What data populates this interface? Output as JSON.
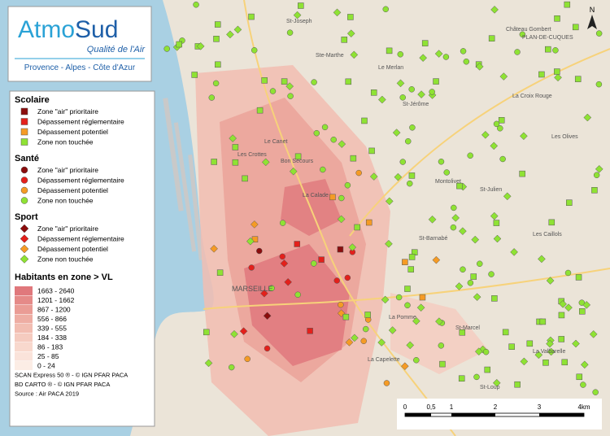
{
  "logo": {
    "brand_a": "Atmo",
    "brand_b": "Sud",
    "tagline": "Qualité de l'Air",
    "region": "Provence - Alpes - Côte d'Azur"
  },
  "legend": {
    "sections": [
      {
        "title": "Scolaire",
        "shape": "square",
        "items": [
          {
            "label": "Zone \"air\" prioritaire",
            "color": "#8b0d0d"
          },
          {
            "label": "Dépassement réglementaire",
            "color": "#e3201b"
          },
          {
            "label": "Dépassement potentiel",
            "color": "#f59b25"
          },
          {
            "label": "Zone non touchée",
            "color": "#8fe234"
          }
        ]
      },
      {
        "title": "Santé",
        "shape": "circle",
        "items": [
          {
            "label": "Zone \"air\" prioritaire",
            "color": "#8b0d0d"
          },
          {
            "label": "Dépassement réglementaire",
            "color": "#e3201b"
          },
          {
            "label": "Dépassement potentiel",
            "color": "#f59b25"
          },
          {
            "label": "Zone non touchée",
            "color": "#8fe234"
          }
        ]
      },
      {
        "title": "Sport",
        "shape": "diamond",
        "items": [
          {
            "label": "Zone \"air\" prioritaire",
            "color": "#8b0d0d"
          },
          {
            "label": "Dépassement réglementaire",
            "color": "#e3201b"
          },
          {
            "label": "Dépassement potentiel",
            "color": "#f59b25"
          },
          {
            "label": "Zone non touchée",
            "color": "#8fe234"
          }
        ]
      }
    ],
    "choropleth": {
      "title": "Habitants en zone > VL",
      "classes": [
        {
          "label": "1663 - 2640",
          "color": "#e0787c"
        },
        {
          "label": "1201 - 1662",
          "color": "#e58a88"
        },
        {
          "label": "867 - 1200",
          "color": "#ea9c95"
        },
        {
          "label": "556 - 866",
          "color": "#eeada3"
        },
        {
          "label": "339 - 555",
          "color": "#f2bdb1"
        },
        {
          "label": "184 - 338",
          "color": "#f5cbbf"
        },
        {
          "label": "86 - 183",
          "color": "#f8d8cd"
        },
        {
          "label": "25 - 85",
          "color": "#fae3da"
        },
        {
          "label": "0 - 24",
          "color": "#fcede5"
        }
      ]
    }
  },
  "credits": [
    "SCAN Express 50 ® - © IGN PFAR PACA",
    "BD CARTO ® - © IGN PFAR PACA",
    "Source : Air PACA 2019"
  ],
  "scale": [
    "0",
    "0,5",
    "1",
    "2",
    "3",
    "4km"
  ],
  "north": "N",
  "places": [
    "Château Gombert",
    "PLAN-DE-CUQUES",
    "St-Joseph",
    "Ste-Marthe",
    "Le Merlan",
    "St-Jérôme",
    "La Croix Rouge",
    "Les Olives",
    "Montolivet",
    "Les Caillols",
    "La Calade",
    "Bon Secours",
    "St-Barnabé",
    "St-Julien",
    "La Valbarelle",
    "St-Loup",
    "La Capelette",
    "MARSEILLE",
    "Les Crottes",
    "Le Canet",
    "La Pomme",
    "St-Marcel"
  ]
}
